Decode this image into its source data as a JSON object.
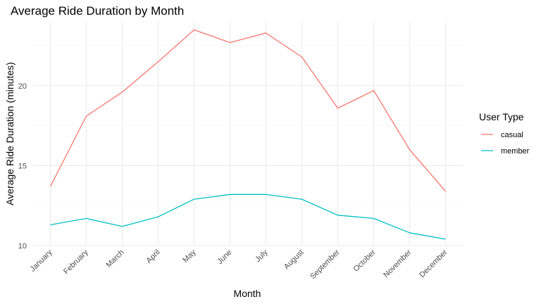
{
  "chart_data": {
    "type": "line",
    "title": "Average Ride Duration by Month",
    "xlabel": "Month",
    "ylabel": "Average Ride Duration (minutes)",
    "categories": [
      "January",
      "February",
      "March",
      "April",
      "May",
      "June",
      "July",
      "August",
      "September",
      "October",
      "November",
      "December"
    ],
    "series": [
      {
        "name": "casual",
        "color": "#F8766D",
        "values": [
          13.7,
          18.1,
          19.6,
          21.5,
          23.5,
          22.7,
          23.3,
          21.8,
          18.6,
          19.7,
          16.0,
          13.4
        ]
      },
      {
        "name": "member",
        "color": "#00BFC4",
        "values": [
          11.3,
          11.7,
          11.2,
          11.8,
          12.9,
          13.2,
          13.2,
          12.9,
          11.9,
          11.7,
          10.8,
          10.4
        ]
      }
    ],
    "ylim": [
      10,
      24
    ],
    "yticks": [
      10,
      15,
      20
    ],
    "grid": true,
    "legend": {
      "title": "User Type",
      "position": "right"
    }
  }
}
